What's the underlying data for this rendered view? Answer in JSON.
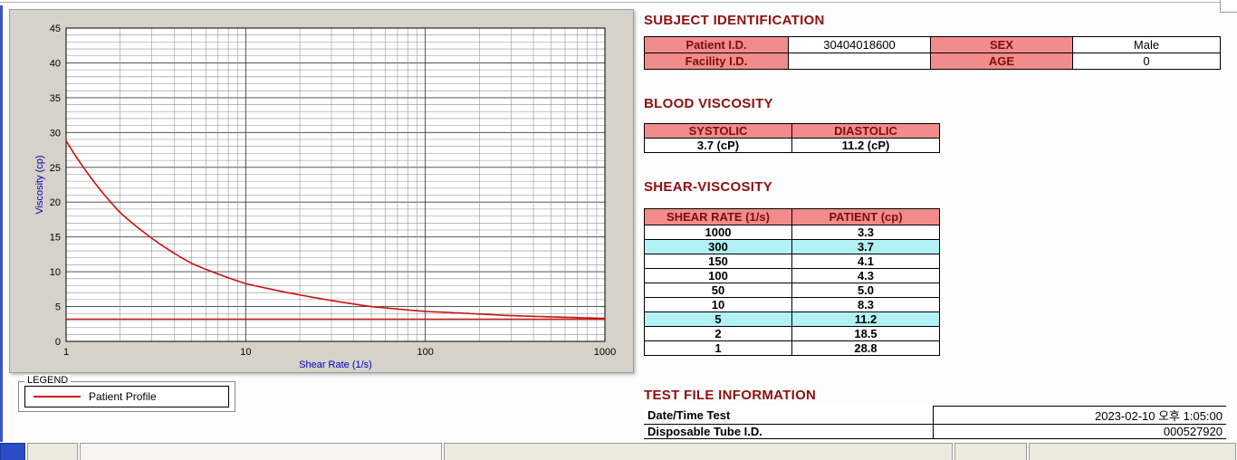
{
  "colors": {
    "series": "#cc1111",
    "header_bg": "#f28b8b",
    "highlight_bg": "#b2f1f4",
    "section_title": "#8e1010",
    "axis_label": "#0000bb"
  },
  "chart": {
    "y_ticks": [
      0,
      5,
      10,
      15,
      20,
      25,
      30,
      35,
      40,
      45
    ],
    "x_ticks": [
      1,
      10,
      100,
      1000
    ]
  },
  "chart_data": {
    "type": "line",
    "title": "",
    "xlabel": "Shear Rate (1/s)",
    "ylabel": "Viscosity (cp)",
    "x_scale": "log",
    "xlim": [
      1,
      1000
    ],
    "ylim": [
      0,
      45
    ],
    "grid": true,
    "x": [
      1,
      2,
      5,
      10,
      50,
      100,
      150,
      300,
      1000
    ],
    "series": [
      {
        "name": "Patient Profile",
        "values": [
          28.8,
          18.5,
          11.2,
          8.3,
          5.0,
          4.3,
          4.1,
          3.7,
          3.3
        ]
      }
    ],
    "reference_line_y": 3.2,
    "legend_position": "below-left"
  },
  "legend": {
    "title": "LEGEND",
    "series": "Patient Profile"
  },
  "subject": {
    "title": "SUBJECT IDENTIFICATION",
    "rows": [
      {
        "label1": "Patient I.D.",
        "value1": "30404018600",
        "label2": "SEX",
        "value2": "Male"
      },
      {
        "label1": "Facility I.D.",
        "value1": "",
        "label2": "AGE",
        "value2": "0"
      }
    ]
  },
  "blood_viscosity": {
    "title": "BLOOD VISCOSITY",
    "headers": [
      "SYSTOLIC",
      "DIASTOLIC"
    ],
    "values": [
      "3.7 (cP)",
      "11.2 (cP)"
    ]
  },
  "shear": {
    "title": "SHEAR-VISCOSITY",
    "headers": [
      "SHEAR RATE (1/s)",
      "PATIENT (cp)"
    ],
    "rows": [
      {
        "rate": "1000",
        "visc": "3.3",
        "highlight": false
      },
      {
        "rate": "300",
        "visc": "3.7",
        "highlight": true
      },
      {
        "rate": "150",
        "visc": "4.1",
        "highlight": false
      },
      {
        "rate": "100",
        "visc": "4.3",
        "highlight": false
      },
      {
        "rate": "50",
        "visc": "5.0",
        "highlight": false
      },
      {
        "rate": "10",
        "visc": "8.3",
        "highlight": false
      },
      {
        "rate": "5",
        "visc": "11.2",
        "highlight": true
      },
      {
        "rate": "2",
        "visc": "18.5",
        "highlight": false
      },
      {
        "rate": "1",
        "visc": "28.8",
        "highlight": false
      }
    ]
  },
  "test_file": {
    "title": "TEST FILE INFORMATION",
    "rows": [
      {
        "label": "Date/Time Test",
        "value": "2023-02-10   오후 1:05:00"
      },
      {
        "label": "Disposable Tube I.D.",
        "value": "000527920"
      }
    ]
  }
}
